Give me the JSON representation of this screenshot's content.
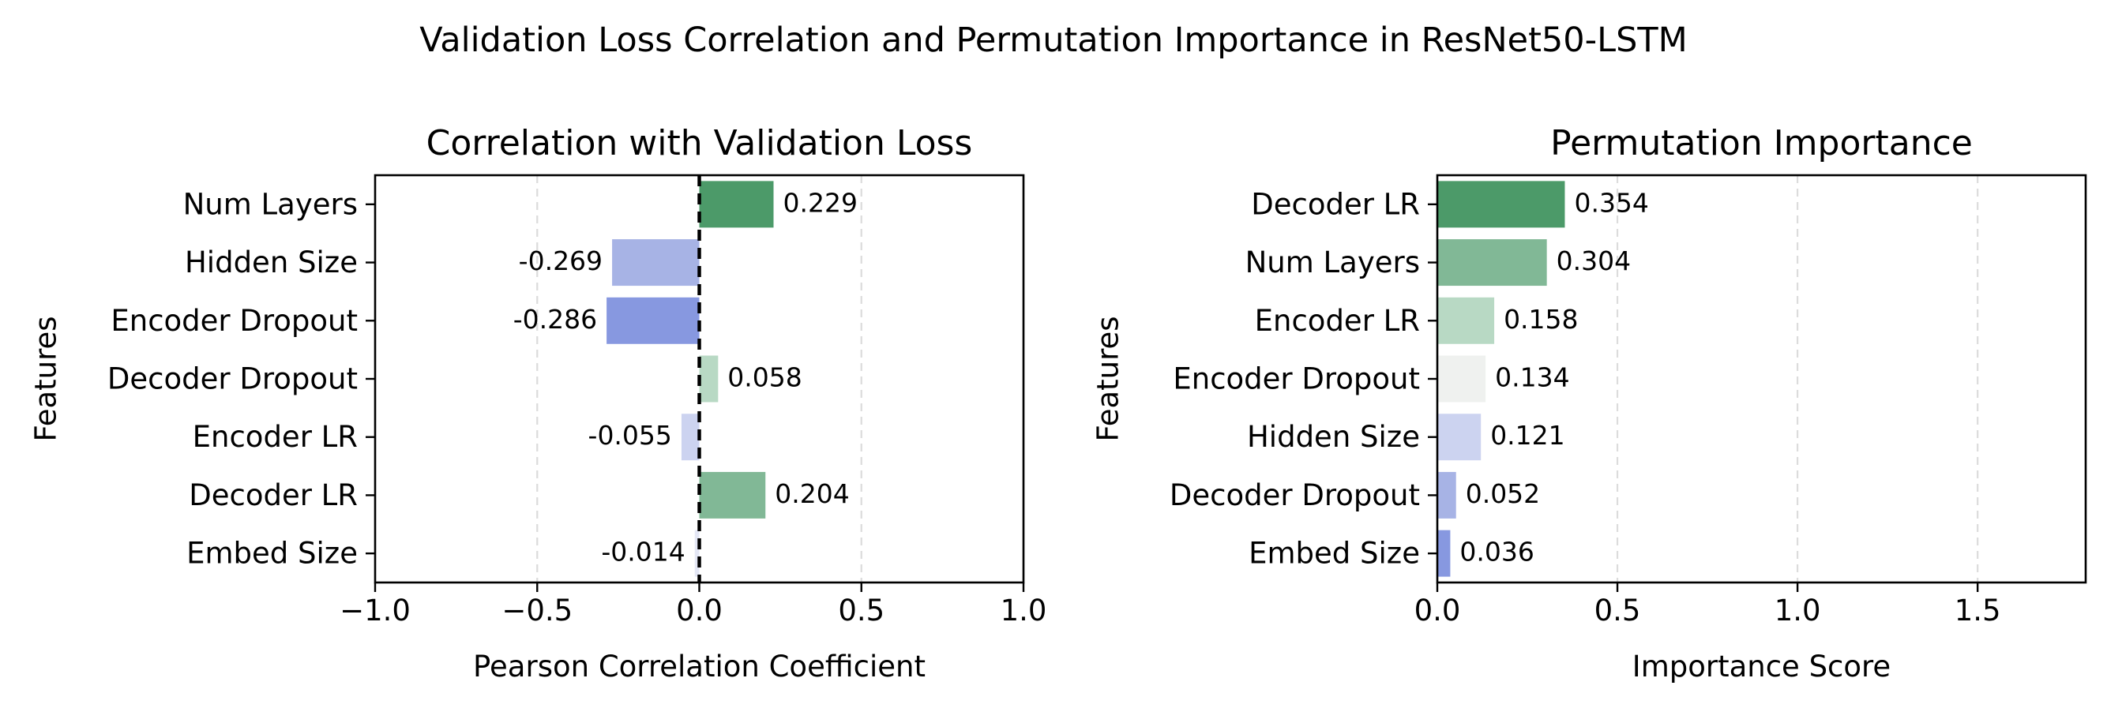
{
  "figure": {
    "suptitle": "Validation Loss Correlation and Permutation Importance in ResNet50-LSTM"
  },
  "chart_data": [
    {
      "type": "bar",
      "orientation": "horizontal",
      "title": "Correlation with Validation Loss",
      "xlabel": "Pearson Correlation Coefficient",
      "ylabel": "Features",
      "categories": [
        "Num Layers",
        "Hidden Size",
        "Encoder Dropout",
        "Decoder Dropout",
        "Encoder LR",
        "Decoder LR",
        "Embed Size"
      ],
      "values": [
        0.229,
        -0.269,
        -0.286,
        0.058,
        -0.055,
        0.204,
        -0.014
      ],
      "value_labels": [
        "0.229",
        "-0.269",
        "-0.286",
        "0.058",
        "-0.055",
        "0.204",
        "-0.014"
      ],
      "bar_colors": [
        "#4c9a69",
        "#a7b3e5",
        "#8798e0",
        "#b8d9c4",
        "#ccd3f0",
        "#81b896",
        "#e4e7f5"
      ],
      "xlim": [
        -1.0,
        1.0
      ],
      "xticks": [
        -1.0,
        -0.5,
        0.0,
        0.5,
        1.0
      ],
      "xtick_labels": [
        "−1.0",
        "−0.5",
        "0.0",
        "0.5",
        "1.0"
      ],
      "grid": "x dashed",
      "zero_line": "dashed black"
    },
    {
      "type": "bar",
      "orientation": "horizontal",
      "title": "Permutation Importance",
      "xlabel": "Importance Score",
      "ylabel": "Features",
      "categories": [
        "Decoder LR",
        "Num Layers",
        "Encoder LR",
        "Encoder Dropout",
        "Hidden Size",
        "Decoder Dropout",
        "Embed Size"
      ],
      "values": [
        0.354,
        0.304,
        0.158,
        0.134,
        0.121,
        0.052,
        0.036
      ],
      "value_labels": [
        "0.354",
        "0.304",
        "0.158",
        "0.134",
        "0.121",
        "0.052",
        "0.036"
      ],
      "bar_colors": [
        "#4c9a69",
        "#81b896",
        "#b8d9c4",
        "#eff1ef",
        "#ccd3f0",
        "#a7b3e5",
        "#8798e0"
      ],
      "xlim": [
        0.0,
        1.8
      ],
      "xticks": [
        0.0,
        0.5,
        1.0,
        1.5
      ],
      "xtick_labels": [
        "0.0",
        "0.5",
        "1.0",
        "1.5"
      ],
      "grid": "x dashed"
    }
  ]
}
